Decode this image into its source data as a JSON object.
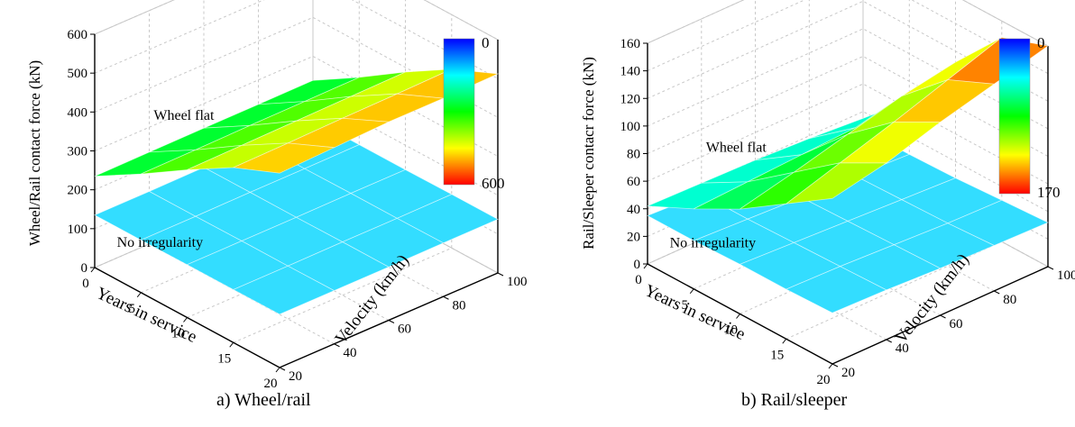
{
  "colors": {
    "scale": [
      "#0000ff",
      "#0080ff",
      "#00ffff",
      "#00ff80",
      "#00ff00",
      "#80ff00",
      "#ffff00",
      "#ff8000",
      "#ff0000"
    ],
    "no_irregularity_fill": "#33ddff",
    "axis": "#000000",
    "grid": "#c8c8c8"
  },
  "chart_data": [
    {
      "type": "surface",
      "caption": "a) Wheel/rail",
      "zlabel": "Wheel/Rail contact force (kN)",
      "xlabel": "Years in service",
      "ylabel": "Velocity (km/h)",
      "x": [
        0,
        5,
        10,
        15,
        20
      ],
      "y": [
        20,
        40,
        60,
        80,
        100
      ],
      "xticks": [
        "0",
        "5",
        "10",
        "15",
        "20"
      ],
      "yticks": [
        "20",
        "40",
        "60",
        "80",
        "100"
      ],
      "zticks": [
        "0",
        "100",
        "200",
        "300",
        "400",
        "500",
        "600"
      ],
      "zlim": [
        0,
        600
      ],
      "colorbar": {
        "min": "0",
        "max": "600",
        "range": [
          0,
          600
        ]
      },
      "series": [
        {
          "name": "Wheel flat",
          "z": [
            [
              235,
              305,
              380,
              450,
              500
            ],
            [
              236,
              306,
              382,
              452,
              505
            ],
            [
              237,
              308,
              384,
              455,
              510
            ],
            [
              237,
              309,
              386,
              457,
              510
            ],
            [
              238,
              310,
              388,
              460,
              512
            ]
          ]
        },
        {
          "name": "No irregularity",
          "z": [
            [
              135,
              135,
              136,
              136,
              137
            ],
            [
              135,
              135,
              136,
              136,
              137
            ],
            [
              136,
              136,
              136,
              137,
              137
            ],
            [
              136,
              136,
              137,
              137,
              138
            ],
            [
              137,
              137,
              137,
              138,
              138
            ]
          ]
        }
      ]
    },
    {
      "type": "surface",
      "caption": "b) Rail/sleeper",
      "zlabel": "Rail/Sleeper contacr force (kN)",
      "xlabel": "Years in service",
      "ylabel": "Velocity (km/h)",
      "x": [
        0,
        5,
        10,
        15,
        20
      ],
      "y": [
        20,
        40,
        60,
        80,
        100
      ],
      "xticks": [
        "0",
        "5",
        "10",
        "15",
        "20"
      ],
      "yticks": [
        "20",
        "40",
        "60",
        "80",
        "100"
      ],
      "zticks": [
        "0",
        "20",
        "40",
        "60",
        "80",
        "100",
        "120",
        "140",
        "160"
      ],
      "zlim": [
        0,
        160
      ],
      "colorbar": {
        "min": "0",
        "max": "170",
        "range": [
          0,
          170
        ]
      },
      "series": [
        {
          "name": "Wheel flat",
          "z": [
            [
              42,
              58,
              76,
              98,
              120
            ],
            [
              41,
              60,
              85,
              110,
              128
            ],
            [
              40,
              62,
              95,
              122,
              140
            ],
            [
              38,
              64,
              105,
              135,
              150
            ],
            [
              35,
              66,
              112,
              148,
              160
            ]
          ]
        },
        {
          "name": "No irregularity",
          "z": [
            [
              35,
              35,
              36,
              36,
              37
            ],
            [
              33,
              33,
              34,
              35,
              36
            ],
            [
              31,
              31,
              32,
              33,
              34
            ],
            [
              29,
              29,
              30,
              31,
              33
            ],
            [
              27,
              27,
              28,
              30,
              32
            ]
          ]
        }
      ]
    }
  ]
}
